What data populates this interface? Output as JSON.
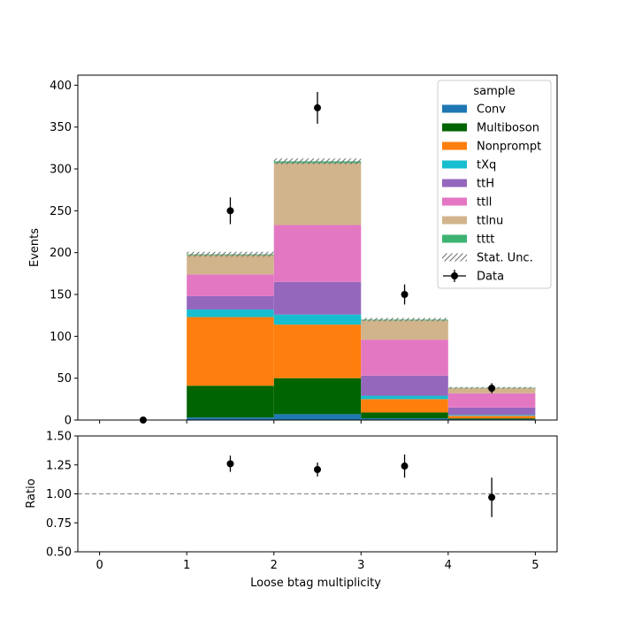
{
  "chart_data": {
    "type": "bar",
    "xlabel": "Loose btag multiplicity",
    "main": {
      "ylabel": "Events",
      "xlim": [
        -0.25,
        5.25
      ],
      "ylim": [
        0,
        412
      ],
      "xticks": [
        "0",
        "1",
        "2",
        "3",
        "4",
        "5"
      ],
      "yticks": [
        "0",
        "50",
        "100",
        "150",
        "200",
        "250",
        "300",
        "350",
        "400"
      ],
      "bins": [
        [
          1,
          2
        ],
        [
          2,
          3
        ],
        [
          3,
          4
        ],
        [
          4,
          5
        ]
      ],
      "series": [
        {
          "name": "Conv",
          "color": "#1f77b4",
          "values": [
            3,
            7,
            2,
            1
          ]
        },
        {
          "name": "Multiboson",
          "color": "#006400",
          "values": [
            38,
            43,
            7,
            1
          ]
        },
        {
          "name": "Nonprompt",
          "color": "#ff7f0e",
          "values": [
            82,
            64,
            16,
            3
          ]
        },
        {
          "name": "tXq",
          "color": "#17becf",
          "values": [
            9,
            12,
            4,
            1
          ]
        },
        {
          "name": "ttH",
          "color": "#9467bd",
          "values": [
            16,
            39,
            24,
            9
          ]
        },
        {
          "name": "ttll",
          "color": "#e377c2",
          "values": [
            26,
            68,
            43,
            17
          ]
        },
        {
          "name": "ttlnu",
          "color": "#d2b48c",
          "values": [
            23,
            74,
            23,
            6
          ]
        },
        {
          "name": "tttt",
          "color": "#3cb371",
          "values": [
            1,
            2,
            1,
            0.5
          ]
        }
      ],
      "stat_unc": {
        "name": "Stat. Unc.",
        "half_width": [
          3,
          3.5,
          2,
          1
        ]
      },
      "data": {
        "name": "Data",
        "x": [
          0.5,
          1.5,
          2.5,
          3.5,
          4.5
        ],
        "y": [
          0,
          250,
          373,
          150,
          38
        ],
        "err": [
          0,
          16,
          19,
          12,
          6
        ]
      },
      "legend": {
        "title": "sample",
        "placement": "top-right"
      }
    },
    "ratio": {
      "ylabel": "Ratio",
      "ylim": [
        0.5,
        1.5
      ],
      "yticks": [
        "0.50",
        "0.75",
        "1.00",
        "1.25",
        "1.50"
      ],
      "reference": 1.0,
      "x": [
        1.5,
        2.5,
        3.5,
        4.5
      ],
      "y": [
        1.26,
        1.21,
        1.24,
        0.97
      ],
      "err": [
        0.07,
        0.06,
        0.1,
        0.17
      ]
    }
  }
}
